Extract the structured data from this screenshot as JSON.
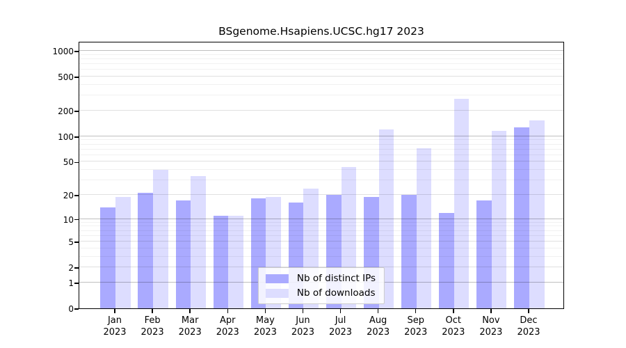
{
  "title": "BSgenome.Hsapiens.UCSC.hg17 2023",
  "chart_data": {
    "type": "bar",
    "title": "BSgenome.Hsapiens.UCSC.hg17 2023",
    "categories": [
      "Jan 2023",
      "Feb 2023",
      "Mar 2023",
      "Apr 2023",
      "May 2023",
      "Jun 2023",
      "Jul 2023",
      "Aug 2023",
      "Sep 2023",
      "Oct 2023",
      "Nov 2023",
      "Dec 2023"
    ],
    "months": [
      "Jan",
      "Feb",
      "Mar",
      "Apr",
      "May",
      "Jun",
      "Jul",
      "Aug",
      "Sep",
      "Oct",
      "Nov",
      "Dec"
    ],
    "year_label": "2023",
    "series": [
      {
        "name": "Nb of distinct IPs",
        "color": "#aaaaff",
        "values": [
          14,
          21,
          17,
          11,
          18,
          16,
          20,
          19,
          20,
          12,
          17,
          127
        ]
      },
      {
        "name": "Nb of downloads",
        "color": "#ddddff",
        "values": [
          19,
          40,
          34,
          11,
          19,
          24,
          43,
          120,
          72,
          275,
          115,
          155
        ]
      }
    ],
    "xlabel": "",
    "ylabel": "",
    "yscale": "log1p",
    "ylim": [
      0,
      1280
    ],
    "y_ticks": [
      0,
      1,
      2,
      5,
      10,
      20,
      50,
      100,
      200,
      500,
      1000
    ],
    "major_gridlines": [
      1,
      10,
      100,
      1000
    ],
    "labeled_gridlines": [
      2,
      5,
      20,
      50,
      200,
      500
    ],
    "minor_gridlines": [
      3,
      4,
      6,
      7,
      8,
      9,
      30,
      40,
      60,
      70,
      80,
      90,
      300,
      400,
      600,
      700,
      800,
      900
    ],
    "grid": "on",
    "legend_position": "bottom-center"
  }
}
